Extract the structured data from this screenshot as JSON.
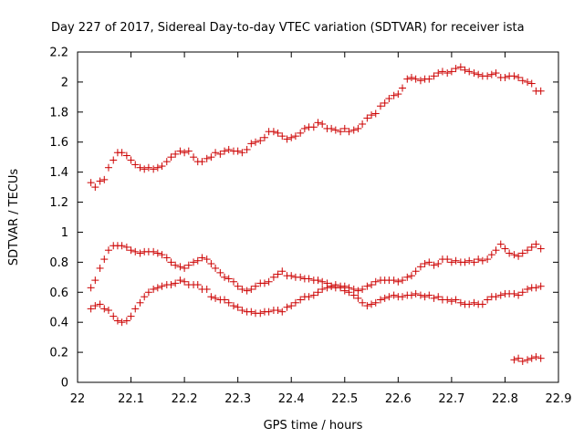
{
  "chart_data": {
    "type": "scatter",
    "title": "Day 227 of 2017, Sidereal Day-to-day VTEC variation (SDTVAR) for receiver ista",
    "xlabel": "GPS time / hours",
    "ylabel": "SDTVAR / TECUs",
    "xlim": [
      22,
      22.9
    ],
    "ylim": [
      0,
      2.2
    ],
    "x_ticks": [
      "22",
      "22.1",
      "22.2",
      "22.3",
      "22.4",
      "22.5",
      "22.6",
      "22.7",
      "22.8",
      "22.9"
    ],
    "y_ticks": [
      "0",
      "0.2",
      "0.4",
      "0.6",
      "0.8",
      "1",
      "1.2",
      "1.4",
      "1.6",
      "1.8",
      "2",
      "2.2"
    ],
    "marker": "+",
    "marker_color": "#cc0000",
    "grid": false,
    "series": [
      {
        "x": [
          22.025,
          22.033,
          22.042,
          22.05,
          22.058,
          22.067,
          22.075,
          22.083,
          22.092,
          22.1,
          22.108,
          22.117,
          22.125,
          22.133,
          22.142,
          22.15,
          22.158,
          22.167,
          22.175,
          22.183,
          22.192,
          22.2,
          22.208,
          22.217,
          22.225,
          22.233,
          22.242,
          22.25,
          22.258,
          22.267,
          22.275,
          22.283,
          22.292,
          22.3,
          22.308,
          22.317,
          22.325,
          22.333,
          22.342,
          22.35,
          22.358,
          22.367,
          22.375,
          22.383,
          22.392,
          22.4,
          22.408,
          22.417,
          22.425,
          22.433,
          22.442,
          22.45,
          22.458,
          22.467,
          22.475,
          22.483,
          22.492,
          22.5,
          22.508,
          22.517,
          22.525,
          22.533,
          22.542,
          22.55,
          22.558,
          22.567,
          22.575,
          22.583,
          22.592,
          22.6,
          22.608,
          22.617,
          22.625,
          22.633,
          22.642,
          22.65,
          22.658,
          22.667,
          22.675,
          22.683,
          22.692,
          22.7,
          22.708,
          22.717,
          22.725,
          22.733,
          22.742,
          22.75,
          22.758,
          22.767,
          22.775,
          22.783,
          22.792,
          22.8,
          22.808,
          22.817,
          22.825,
          22.833,
          22.842,
          22.85,
          22.858,
          22.867
        ],
        "y": [
          1.33,
          1.3,
          1.34,
          1.35,
          1.43,
          1.48,
          1.53,
          1.53,
          1.51,
          1.48,
          1.45,
          1.43,
          1.42,
          1.43,
          1.42,
          1.43,
          1.44,
          1.47,
          1.5,
          1.52,
          1.54,
          1.53,
          1.54,
          1.5,
          1.47,
          1.47,
          1.49,
          1.5,
          1.53,
          1.52,
          1.54,
          1.55,
          1.54,
          1.54,
          1.53,
          1.55,
          1.59,
          1.6,
          1.61,
          1.63,
          1.67,
          1.67,
          1.66,
          1.64,
          1.62,
          1.63,
          1.64,
          1.66,
          1.69,
          1.7,
          1.7,
          1.73,
          1.72,
          1.69,
          1.69,
          1.68,
          1.67,
          1.69,
          1.67,
          1.68,
          1.69,
          1.72,
          1.76,
          1.78,
          1.79,
          1.84,
          1.86,
          1.89,
          1.91,
          1.92,
          1.96,
          2.02,
          2.03,
          2.02,
          2.01,
          2.02,
          2.02,
          2.04,
          2.06,
          2.07,
          2.06,
          2.07,
          2.09,
          2.1,
          2.08,
          2.07,
          2.06,
          2.05,
          2.04,
          2.04,
          2.05,
          2.06,
          2.03,
          2.03,
          2.04,
          2.04,
          2.03,
          2.01,
          2.0,
          1.99,
          1.94,
          1.94
        ]
      },
      {
        "x": [
          22.025,
          22.033,
          22.042,
          22.05,
          22.058,
          22.067,
          22.075,
          22.083,
          22.092,
          22.1,
          22.108,
          22.117,
          22.125,
          22.133,
          22.142,
          22.15,
          22.158,
          22.167,
          22.175,
          22.183,
          22.192,
          22.2,
          22.208,
          22.217,
          22.225,
          22.233,
          22.242,
          22.25,
          22.258,
          22.267,
          22.275,
          22.283,
          22.292,
          22.3,
          22.308,
          22.317,
          22.325,
          22.333,
          22.342,
          22.35,
          22.358,
          22.367,
          22.375,
          22.383,
          22.392,
          22.4,
          22.408,
          22.417,
          22.425,
          22.433,
          22.442,
          22.45,
          22.458,
          22.467,
          22.475,
          22.483,
          22.492,
          22.5,
          22.508,
          22.517,
          22.525,
          22.533,
          22.542,
          22.55,
          22.558,
          22.567,
          22.575,
          22.583,
          22.592,
          22.6,
          22.608,
          22.617,
          22.625,
          22.633,
          22.642,
          22.65,
          22.658,
          22.667,
          22.675,
          22.683,
          22.692,
          22.7,
          22.708,
          22.717,
          22.725,
          22.733,
          22.742,
          22.75,
          22.758,
          22.767,
          22.775,
          22.783,
          22.792,
          22.8,
          22.808,
          22.817,
          22.825,
          22.833,
          22.842,
          22.85,
          22.858,
          22.867
        ],
        "y": [
          0.63,
          0.68,
          0.76,
          0.82,
          0.88,
          0.91,
          0.91,
          0.91,
          0.9,
          0.88,
          0.87,
          0.86,
          0.87,
          0.87,
          0.87,
          0.86,
          0.85,
          0.83,
          0.8,
          0.78,
          0.77,
          0.76,
          0.78,
          0.8,
          0.81,
          0.83,
          0.82,
          0.79,
          0.76,
          0.73,
          0.7,
          0.69,
          0.67,
          0.64,
          0.62,
          0.61,
          0.62,
          0.64,
          0.66,
          0.66,
          0.67,
          0.7,
          0.72,
          0.74,
          0.71,
          0.71,
          0.7,
          0.7,
          0.69,
          0.69,
          0.68,
          0.68,
          0.67,
          0.66,
          0.64,
          0.65,
          0.64,
          0.64,
          0.63,
          0.62,
          0.61,
          0.62,
          0.64,
          0.65,
          0.67,
          0.68,
          0.68,
          0.68,
          0.68,
          0.67,
          0.68,
          0.7,
          0.71,
          0.74,
          0.77,
          0.79,
          0.8,
          0.78,
          0.79,
          0.82,
          0.82,
          0.8,
          0.81,
          0.8,
          0.8,
          0.81,
          0.8,
          0.82,
          0.81,
          0.82,
          0.85,
          0.88,
          0.92,
          0.89,
          0.86,
          0.85,
          0.84,
          0.86,
          0.88,
          0.9,
          0.92,
          0.89
        ]
      },
      {
        "x": [
          22.025,
          22.033,
          22.042,
          22.05,
          22.058,
          22.067,
          22.075,
          22.083,
          22.092,
          22.1,
          22.108,
          22.117,
          22.125,
          22.133,
          22.142,
          22.15,
          22.158,
          22.167,
          22.175,
          22.183,
          22.192,
          22.2,
          22.208,
          22.217,
          22.225,
          22.233,
          22.242,
          22.25,
          22.258,
          22.267,
          22.275,
          22.283,
          22.292,
          22.3,
          22.308,
          22.317,
          22.325,
          22.333,
          22.342,
          22.35,
          22.358,
          22.367,
          22.375,
          22.383,
          22.392,
          22.4,
          22.408,
          22.417,
          22.425,
          22.433,
          22.442,
          22.45,
          22.458,
          22.467,
          22.475,
          22.483,
          22.492,
          22.5,
          22.508,
          22.517,
          22.525,
          22.533,
          22.542,
          22.55,
          22.558,
          22.567,
          22.575,
          22.583,
          22.592,
          22.6,
          22.608,
          22.617,
          22.625,
          22.633,
          22.642,
          22.65,
          22.658,
          22.667,
          22.675,
          22.683,
          22.692,
          22.7,
          22.708,
          22.717,
          22.725,
          22.733,
          22.742,
          22.75,
          22.758,
          22.767,
          22.775,
          22.783,
          22.792,
          22.8,
          22.808,
          22.817,
          22.825,
          22.833,
          22.842,
          22.85,
          22.858,
          22.867
        ],
        "y": [
          0.49,
          0.51,
          0.52,
          0.49,
          0.48,
          0.44,
          0.41,
          0.4,
          0.41,
          0.44,
          0.49,
          0.53,
          0.57,
          0.6,
          0.62,
          0.63,
          0.64,
          0.65,
          0.65,
          0.66,
          0.68,
          0.67,
          0.65,
          0.65,
          0.65,
          0.62,
          0.62,
          0.57,
          0.56,
          0.55,
          0.55,
          0.53,
          0.51,
          0.5,
          0.48,
          0.47,
          0.47,
          0.46,
          0.46,
          0.47,
          0.47,
          0.48,
          0.48,
          0.47,
          0.5,
          0.51,
          0.53,
          0.55,
          0.57,
          0.57,
          0.58,
          0.6,
          0.62,
          0.63,
          0.64,
          0.63,
          0.63,
          0.61,
          0.6,
          0.58,
          0.56,
          0.53,
          0.51,
          0.52,
          0.53,
          0.55,
          0.56,
          0.57,
          0.58,
          0.57,
          0.57,
          0.58,
          0.58,
          0.59,
          0.58,
          0.57,
          0.58,
          0.56,
          0.57,
          0.55,
          0.55,
          0.54,
          0.55,
          0.53,
          0.52,
          0.52,
          0.53,
          0.52,
          0.52,
          0.55,
          0.57,
          0.57,
          0.58,
          0.59,
          0.59,
          0.59,
          0.58,
          0.6,
          0.62,
          0.63,
          0.63,
          0.64
        ]
      },
      {
        "x": [
          22.817,
          22.825,
          22.833,
          22.842,
          22.85,
          22.858,
          22.867
        ],
        "y": [
          0.15,
          0.16,
          0.14,
          0.15,
          0.16,
          0.17,
          0.16
        ]
      }
    ]
  }
}
